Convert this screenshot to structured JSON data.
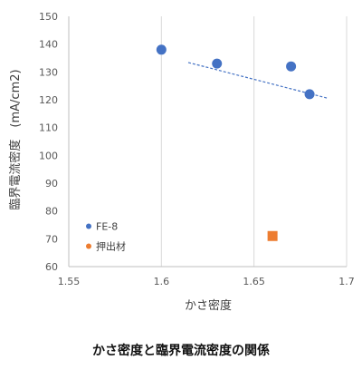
{
  "chart_data": {
    "type": "scatter",
    "xlabel": "かさ密度",
    "ylabel": "臨界電流密度　(mA/cm2)",
    "xlim": [
      1.55,
      1.7
    ],
    "ylim": [
      60,
      150
    ],
    "xticks": [
      1.55,
      1.6,
      1.65,
      1.7
    ],
    "xtick_labels": [
      "1.55",
      "1.6",
      "1.65",
      "1.7"
    ],
    "yticks": [
      60,
      70,
      80,
      90,
      100,
      110,
      120,
      130,
      140,
      150
    ],
    "ytick_labels": [
      "60",
      "70",
      "80",
      "90",
      "100",
      "110",
      "120",
      "130",
      "140",
      "150"
    ],
    "grid": "vertical",
    "legend": "bottom-left",
    "series": [
      {
        "name": "FE-8",
        "marker": "circle",
        "color": "#4472C4",
        "x": [
          1.6,
          1.63,
          1.67,
          1.68
        ],
        "y": [
          138,
          133,
          132,
          122
        ]
      },
      {
        "name": "押出材",
        "marker": "square",
        "color": "#ED7D31",
        "x": [
          1.66
        ],
        "y": [
          71
        ]
      }
    ],
    "trendline": {
      "series": "FE-8",
      "style": "dashed",
      "color": "#4472C4",
      "x": [
        1.6145,
        1.6895
      ],
      "y": [
        133.4,
        120.6
      ]
    }
  },
  "caption": "かさ密度と臨界電流密度の関係"
}
